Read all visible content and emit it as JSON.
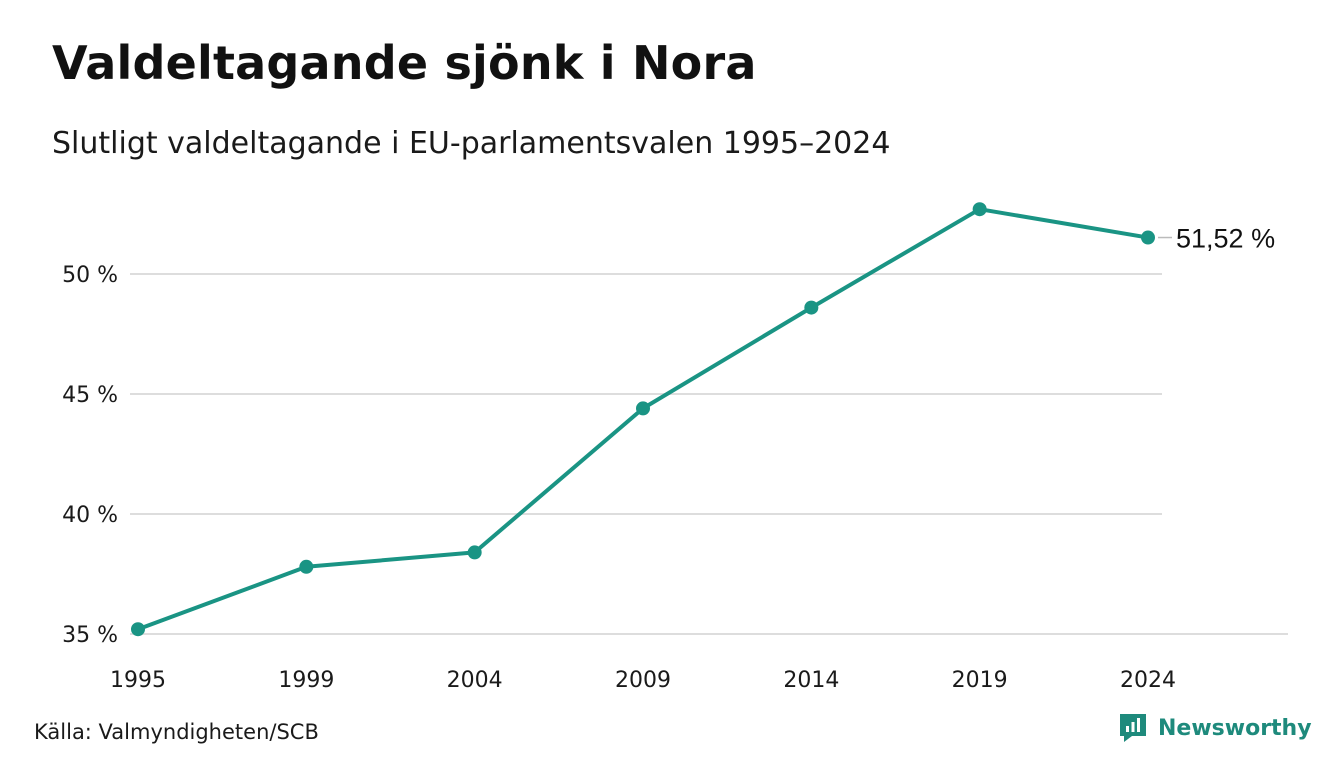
{
  "title": "Valdeltagande sjönk i Nora",
  "subtitle": "Slutligt valdeltagande i EU-parlamentsvalen 1995–2024",
  "source": "Källa: Valmyndigheten/SCB",
  "brand": {
    "name": "Newsworthy",
    "icon": "newsworthy-logo-icon",
    "color": "#1e8a7c"
  },
  "colors": {
    "line": "#1a9484",
    "grid": "#dddddd"
  },
  "chart_data": {
    "type": "line",
    "title": "Valdeltagande sjönk i Nora",
    "subtitle": "Slutligt valdeltagande i EU-parlamentsvalen 1995–2024",
    "xlabel": "",
    "ylabel": "",
    "x": [
      "1995",
      "1999",
      "2004",
      "2009",
      "2014",
      "2019",
      "2024"
    ],
    "series": [
      {
        "values": [
          35.2,
          37.8,
          38.4,
          44.4,
          48.6,
          52.7,
          51.52
        ]
      }
    ],
    "ylim": [
      35,
      53
    ],
    "yticks": [
      35,
      40,
      45,
      50
    ],
    "ytick_labels": [
      "35 %",
      "40 %",
      "45 %",
      "50 %"
    ],
    "end_label": "51,52 %",
    "grid": true,
    "legend": "none"
  }
}
